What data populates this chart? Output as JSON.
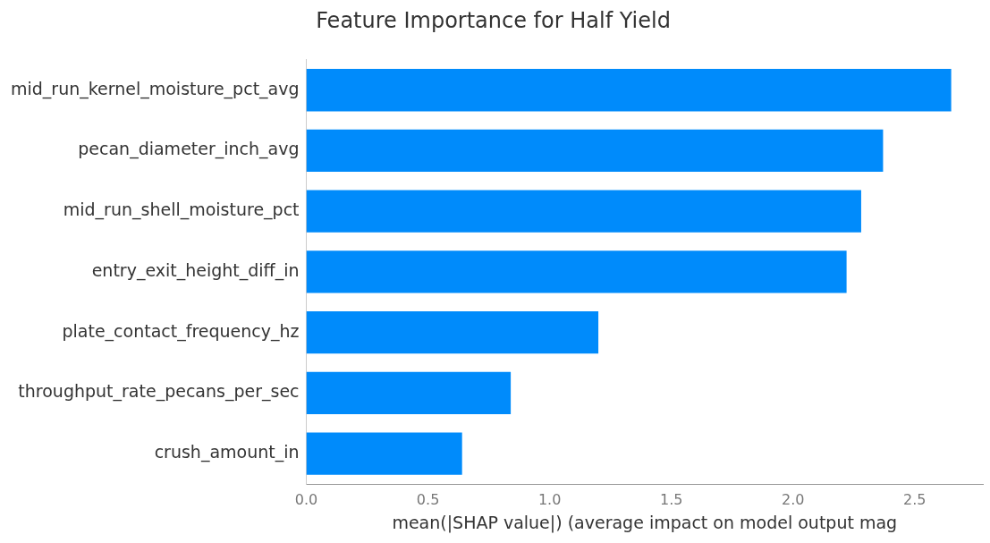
{
  "chart_data": {
    "type": "bar",
    "orientation": "horizontal",
    "title": "Feature Importance for Half Yield",
    "xlabel": "mean(|SHAP value|) (average impact on model output mag",
    "categories": [
      "mid_run_kernel_moisture_pct_avg",
      "pecan_diameter_inch_avg",
      "mid_run_shell_moisture_pct",
      "entry_exit_height_diff_in",
      "plate_contact_frequency_hz",
      "throughput_rate_pecans_per_sec",
      "crush_amount_in"
    ],
    "values": [
      2.65,
      2.37,
      2.28,
      2.22,
      1.2,
      0.84,
      0.64
    ],
    "color": "#008bfb",
    "xlim": [
      0,
      2.78
    ],
    "xticks": [
      {
        "value": 0,
        "label": "0.0"
      },
      {
        "value": 0.5,
        "label": "0.5"
      },
      {
        "value": 1,
        "label": "1.0"
      },
      {
        "value": 1.5,
        "label": "1.5"
      },
      {
        "value": 2,
        "label": "2.0"
      },
      {
        "value": 2.5,
        "label": "2.5"
      }
    ],
    "grid": false,
    "legend": false
  }
}
